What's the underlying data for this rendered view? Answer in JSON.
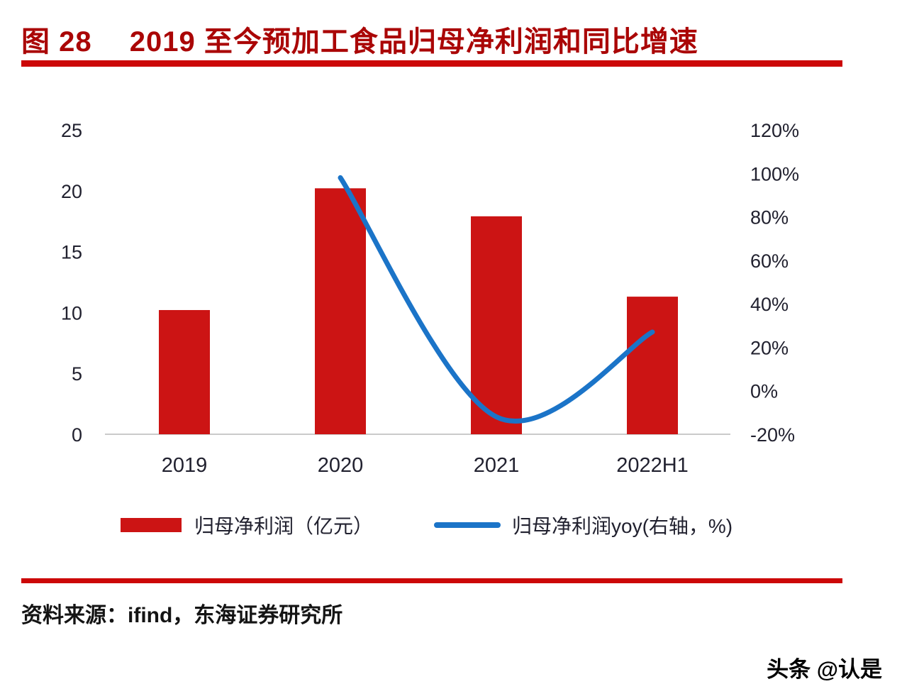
{
  "header": {
    "figure_title": "图 28　 2019 至今预加工食品归母净利润和同比增速"
  },
  "chart_data": {
    "type": "bar",
    "subtype": "combo-bar-line",
    "categories": [
      "2019",
      "2020",
      "2021",
      "2022H1"
    ],
    "series": [
      {
        "name": "归母净利润（亿元）",
        "type": "bar",
        "axis": "left",
        "values": [
          10.2,
          20.2,
          17.9,
          11.3
        ],
        "color": "#cc1414"
      },
      {
        "name": "归母净利润yoy(右轴，%)",
        "type": "line",
        "axis": "right",
        "values": [
          null,
          98,
          -12,
          27
        ],
        "color": "#1b74c8"
      }
    ],
    "left_axis": {
      "min": 0,
      "max": 25,
      "step": 5,
      "ticks": [
        "0",
        "5",
        "10",
        "15",
        "20",
        "25"
      ]
    },
    "right_axis": {
      "min": -20,
      "max": 120,
      "step": 20,
      "ticks": [
        "-20%",
        "0%",
        "20%",
        "40%",
        "60%",
        "80%",
        "100%",
        "120%"
      ]
    },
    "grid": false,
    "legend_position": "bottom",
    "title": "2019 至今预加工食品归母净利润和同比增速",
    "xlabel": "",
    "ylabel_left": "归母净利润（亿元）",
    "ylabel_right": "归母净利润yoy(%)"
  },
  "legend": {
    "bar_label": "归母净利润（亿元）",
    "line_label": "归母净利润yoy(右轴，%)"
  },
  "footer": {
    "source": "资料来源：ifind，东海证券研究所",
    "watermark": "头条 @认是"
  },
  "colors": {
    "accent_red": "#cc0707",
    "title_red": "#aa0606",
    "bar_red": "#cc1414",
    "line_blue": "#1b74c8",
    "axis_text": "#21212f",
    "axis_line": "#b8b8b8"
  }
}
